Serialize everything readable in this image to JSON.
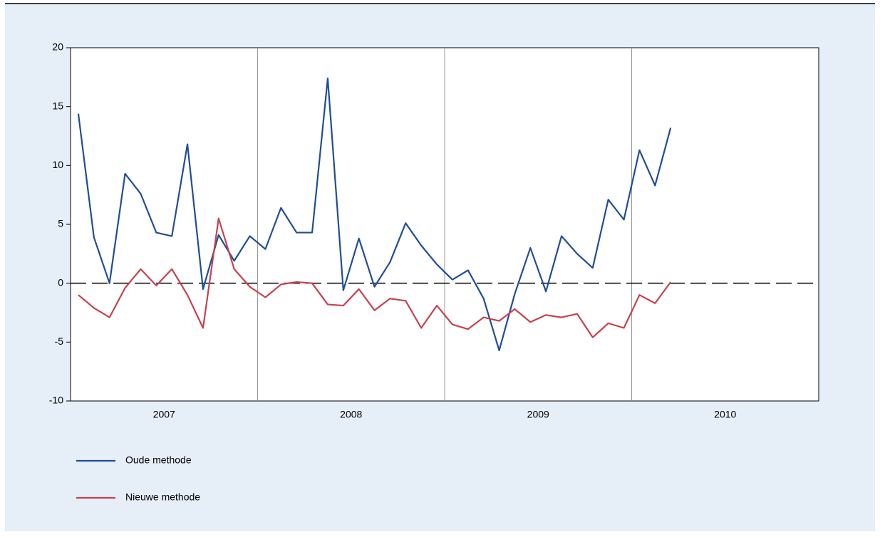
{
  "chart_data": {
    "type": "line",
    "categories": [
      null,
      null,
      null,
      null,
      null,
      null,
      null,
      null,
      null,
      null,
      null,
      null,
      null,
      null,
      null,
      null,
      null,
      null,
      null,
      null,
      null,
      null,
      null,
      null,
      null,
      null,
      null,
      null,
      null,
      null,
      null,
      null,
      null,
      null,
      null,
      null,
      null,
      null,
      null,
      null,
      null,
      null,
      null,
      null,
      null,
      null,
      null,
      null
    ],
    "year_labels": [
      "2007",
      "2008",
      "2009",
      "2010"
    ],
    "series": [
      {
        "name": "Oude methode",
        "color": "#1f4e96",
        "values": [
          14.4,
          3.9,
          0,
          9.3,
          7.6,
          4.3,
          4.0,
          11.8,
          -0.5,
          4.1,
          1.9,
          4.0,
          2.9,
          6.4,
          4.3,
          4.3,
          17.4,
          -0.6,
          3.8,
          -0.3,
          1.8,
          5.1,
          3.2,
          1.6,
          0.3,
          1.1,
          -1.3,
          -5.7,
          -0.9,
          3.0,
          -0.7,
          4.0,
          2.5,
          1.3,
          7.1,
          5.4,
          11.3,
          8.3,
          13.2,
          null,
          null,
          null,
          null,
          null,
          null,
          null,
          null,
          null
        ]
      },
      {
        "name": "Nieuwe methode",
        "color": "#c8404f",
        "values": [
          -1.0,
          -2.1,
          -2.9,
          -0.4,
          1.2,
          -0.2,
          1.2,
          -1.0,
          -3.8,
          5.5,
          1.2,
          -0.3,
          -1.2,
          -0.1,
          0.1,
          0.0,
          -1.8,
          -1.9,
          -0.5,
          -2.3,
          -1.3,
          -1.5,
          -3.8,
          -1.9,
          -3.5,
          -3.9,
          -2.9,
          -3.2,
          -2.2,
          -3.3,
          -2.7,
          -2.9,
          -2.6,
          -4.6,
          -3.4,
          -3.8,
          -1.0,
          -1.7,
          0.1,
          null,
          null,
          null,
          null,
          null,
          null,
          null,
          null,
          null
        ]
      }
    ],
    "ylim": [
      -10,
      20
    ],
    "yticks": [
      -10,
      -5,
      0,
      5,
      10,
      15,
      20
    ],
    "reference_line": 0
  }
}
